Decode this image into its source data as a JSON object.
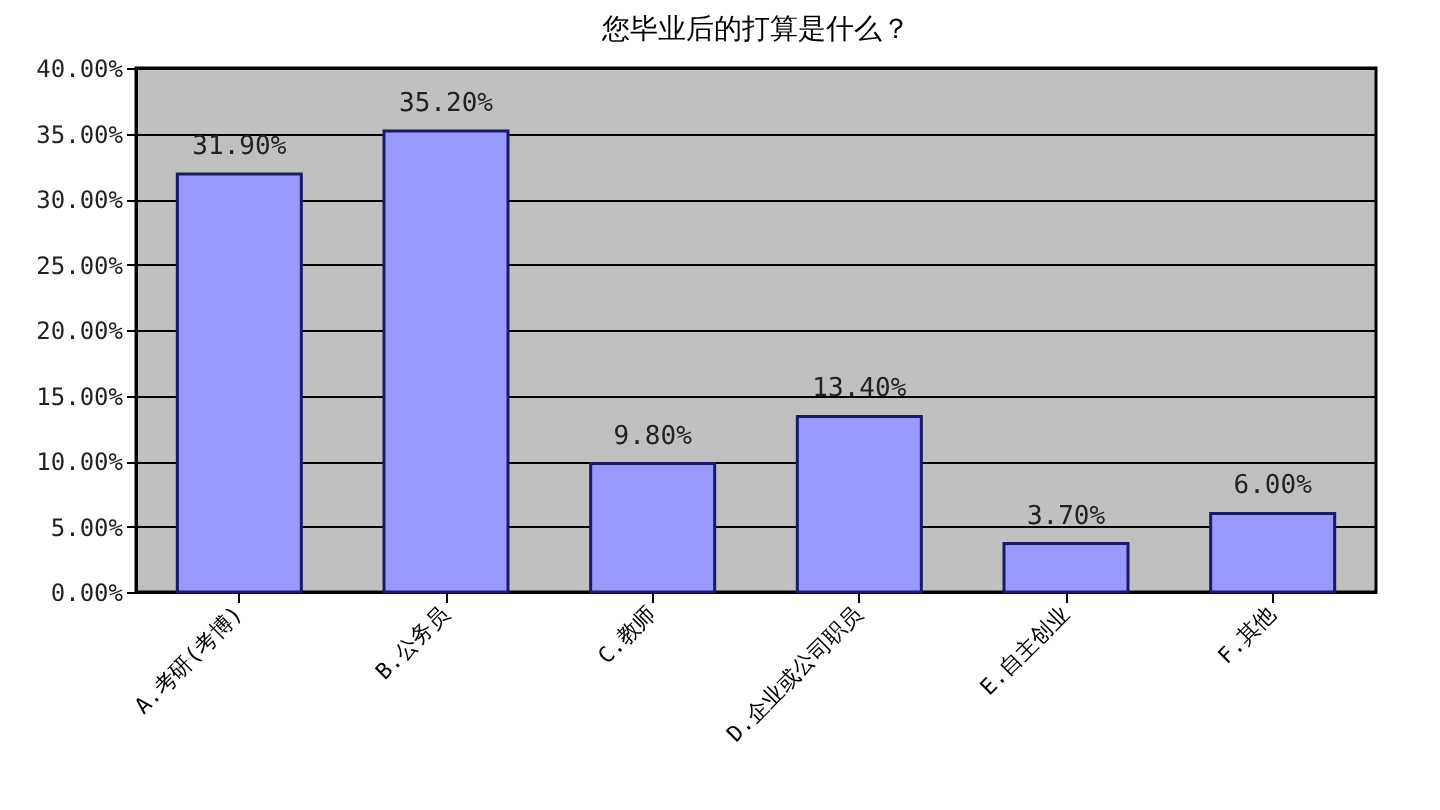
{
  "chart_data": {
    "type": "bar",
    "title": "您毕业后的打算是什么？",
    "categories": [
      "A.考研(考博)",
      "B.公务员",
      "C.教师",
      "D.企业或公司职员",
      "E.自主创业",
      "F.其他"
    ],
    "values": [
      31.9,
      35.2,
      9.8,
      13.4,
      3.7,
      6.0
    ],
    "value_labels": [
      "31.90%",
      "35.20%",
      "9.80%",
      "13.40%",
      "3.70%",
      "6.00%"
    ],
    "color": "#9999ff",
    "ylim": [
      0,
      40
    ],
    "yticks": [
      {
        "value": 0,
        "label": "0.00%"
      },
      {
        "value": 5,
        "label": "5.00%"
      },
      {
        "value": 10,
        "label": "10.00%"
      },
      {
        "value": 15,
        "label": "15.00%"
      },
      {
        "value": 20,
        "label": "20.00%"
      },
      {
        "value": 25,
        "label": "25.00%"
      },
      {
        "value": 30,
        "label": "30.00%"
      },
      {
        "value": 35,
        "label": "35.00%"
      },
      {
        "value": 40,
        "label": "40.00%"
      }
    ],
    "grid": "y"
  }
}
